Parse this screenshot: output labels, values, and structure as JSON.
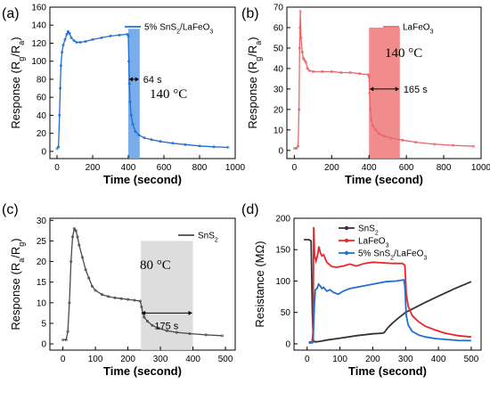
{
  "chart_data": [
    {
      "panel": "(a)",
      "type": "line",
      "xlabel": "Time (second)",
      "ylabel": "Response (Rg/Ra)",
      "ylabel_parts": [
        "Response (R",
        "g",
        "/R",
        "a",
        ")"
      ],
      "xlim": [
        -40,
        1000
      ],
      "ylim": [
        -8,
        160
      ],
      "xticks": [
        0,
        200,
        400,
        600,
        800,
        1000
      ],
      "yticks": [
        0,
        20,
        40,
        60,
        80,
        100,
        120,
        140,
        160
      ],
      "temperature": "140 °C",
      "response_window": [
        400,
        464
      ],
      "response_label": "64 s",
      "window_color": "#6aa3e8",
      "series": [
        {
          "name": "5% SnS2/LaFeO3",
          "name_parts": [
            "5% SnS",
            "2",
            "/LaFeO",
            "3"
          ],
          "color": "#1f6fd1",
          "points": [
            [
              0,
              3
            ],
            [
              8,
              5
            ],
            [
              14,
              40
            ],
            [
              18,
              70
            ],
            [
              22,
              95
            ],
            [
              28,
              110
            ],
            [
              35,
              118
            ],
            [
              45,
              124
            ],
            [
              55,
              130
            ],
            [
              62,
              133
            ],
            [
              70,
              131
            ],
            [
              80,
              126
            ],
            [
              95,
              123
            ],
            [
              110,
              121
            ],
            [
              130,
              121
            ],
            [
              160,
              122
            ],
            [
              200,
              124
            ],
            [
              250,
              126
            ],
            [
              300,
              128
            ],
            [
              350,
              129
            ],
            [
              395,
              130
            ],
            [
              400,
              128
            ],
            [
              403,
              100
            ],
            [
              406,
              75
            ],
            [
              410,
              55
            ],
            [
              416,
              40
            ],
            [
              425,
              30
            ],
            [
              440,
              22
            ],
            [
              460,
              18
            ],
            [
              490,
              15
            ],
            [
              530,
              13
            ],
            [
              580,
              11
            ],
            [
              650,
              9
            ],
            [
              720,
              7.5
            ],
            [
              800,
              6
            ],
            [
              880,
              5
            ],
            [
              960,
              4.5
            ]
          ]
        }
      ]
    },
    {
      "panel": "(b)",
      "type": "line",
      "xlabel": "Time (second)",
      "ylabel": "Response (Rg/Ra)",
      "ylabel_parts": [
        "Response (R",
        "g",
        "/R",
        "a",
        ")"
      ],
      "xlim": [
        -40,
        1000
      ],
      "ylim": [
        -4,
        70
      ],
      "xticks": [
        0,
        200,
        400,
        600,
        800,
        1000
      ],
      "yticks": [
        0,
        10,
        20,
        30,
        40,
        50,
        60,
        70
      ],
      "temperature": "140 °C",
      "response_window": [
        400,
        565
      ],
      "response_label": "165 s",
      "window_color": "#f08080",
      "series": [
        {
          "name": "LaFeO3",
          "name_parts": [
            "LaFeO",
            "3"
          ],
          "color": "#e8676b",
          "points": [
            [
              0,
              1
            ],
            [
              10,
              1
            ],
            [
              20,
              2
            ],
            [
              25,
              20
            ],
            [
              28,
              50
            ],
            [
              30,
              60
            ],
            [
              32,
              68
            ],
            [
              36,
              55
            ],
            [
              42,
              48
            ],
            [
              48,
              45
            ],
            [
              55,
              44
            ],
            [
              62,
              43
            ],
            [
              70,
              40
            ],
            [
              80,
              39
            ],
            [
              100,
              38.5
            ],
            [
              150,
              38.5
            ],
            [
              200,
              38.5
            ],
            [
              250,
              38
            ],
            [
              300,
              38
            ],
            [
              350,
              37.5
            ],
            [
              395,
              37
            ],
            [
              400,
              36
            ],
            [
              403,
              28
            ],
            [
              407,
              20
            ],
            [
              412,
              15
            ],
            [
              420,
              12
            ],
            [
              435,
              10
            ],
            [
              455,
              8
            ],
            [
              480,
              7
            ],
            [
              520,
              6
            ],
            [
              580,
              5
            ],
            [
              650,
              4
            ],
            [
              750,
              3
            ],
            [
              850,
              2.5
            ],
            [
              960,
              2
            ]
          ]
        }
      ]
    },
    {
      "panel": "(c)",
      "type": "line",
      "xlabel": "Time (second)",
      "ylabel": "Response (Ra/Rg)",
      "ylabel_parts": [
        "Response (R",
        "a",
        "/R",
        "g",
        ")"
      ],
      "xlim": [
        -40,
        530
      ],
      "ylim": [
        -1.5,
        30.5
      ],
      "xticks": [
        0,
        100,
        200,
        300,
        400,
        500
      ],
      "yticks": [
        0,
        5,
        10,
        15,
        20,
        25,
        30
      ],
      "temperature": "80 °C",
      "response_window": [
        240,
        400
      ],
      "response_label": "175 s",
      "window_color": "#d7d7d7",
      "series": [
        {
          "name": "SnS2",
          "name_parts": [
            "SnS",
            "2"
          ],
          "color": "#4a4a4a",
          "points": [
            [
              0,
              1
            ],
            [
              10,
              1
            ],
            [
              15,
              3
            ],
            [
              20,
              10
            ],
            [
              25,
              20
            ],
            [
              30,
              26
            ],
            [
              35,
              28
            ],
            [
              40,
              27.5
            ],
            [
              45,
              26
            ],
            [
              50,
              24
            ],
            [
              60,
              21
            ],
            [
              70,
              18
            ],
            [
              80,
              16
            ],
            [
              90,
              14
            ],
            [
              100,
              13
            ],
            [
              120,
              12
            ],
            [
              140,
              11.5
            ],
            [
              160,
              11.2
            ],
            [
              180,
              11
            ],
            [
              200,
              10.8
            ],
            [
              220,
              10.6
            ],
            [
              238,
              10.4
            ],
            [
              242,
              9
            ],
            [
              246,
              7.5
            ],
            [
              250,
              6.5
            ],
            [
              260,
              5.5
            ],
            [
              275,
              4.5
            ],
            [
              295,
              3.8
            ],
            [
              320,
              3.2
            ],
            [
              350,
              2.8
            ],
            [
              390,
              2.5
            ],
            [
              440,
              2.2
            ],
            [
              490,
              2
            ]
          ]
        }
      ]
    },
    {
      "panel": "(d)",
      "type": "line",
      "xlabel": "Time (second)",
      "ylabel": "Resistance (MΩ)",
      "xlim": [
        -40,
        530
      ],
      "ylim": [
        -10,
        200
      ],
      "xticks": [
        0,
        100,
        200,
        300,
        400,
        500
      ],
      "yticks": [
        0,
        50,
        100,
        150,
        200
      ],
      "legend": "top-right",
      "series": [
        {
          "name": "SnS2",
          "name_parts": [
            "SnS",
            "2"
          ],
          "color": "#333333",
          "points": [
            [
              -10,
              166
            ],
            [
              5,
              166
            ],
            [
              12,
              164
            ],
            [
              16,
              50
            ],
            [
              19,
              5
            ],
            [
              25,
              3
            ],
            [
              40,
              4
            ],
            [
              60,
              6
            ],
            [
              100,
              9
            ],
            [
              150,
              13
            ],
            [
              200,
              16
            ],
            [
              230,
              17
            ],
            [
              235,
              18
            ],
            [
              245,
              25
            ],
            [
              260,
              33
            ],
            [
              280,
              42
            ],
            [
              300,
              50
            ],
            [
              330,
              58
            ],
            [
              360,
              66
            ],
            [
              400,
              76
            ],
            [
              450,
              88
            ],
            [
              500,
              99
            ]
          ]
        },
        {
          "name": "LaFeO3",
          "name_parts": [
            "LaFeO",
            "3"
          ],
          "color": "#e8262b",
          "points": [
            [
              5,
              3
            ],
            [
              15,
              3
            ],
            [
              18,
              20
            ],
            [
              20,
              186
            ],
            [
              23,
              140
            ],
            [
              27,
              132
            ],
            [
              32,
              142
            ],
            [
              36,
              155
            ],
            [
              40,
              145
            ],
            [
              45,
              140
            ],
            [
              50,
              142
            ],
            [
              60,
              130
            ],
            [
              75,
              123
            ],
            [
              90,
              122
            ],
            [
              110,
              124
            ],
            [
              130,
              127
            ],
            [
              150,
              124
            ],
            [
              175,
              128
            ],
            [
              200,
              130
            ],
            [
              230,
              129
            ],
            [
              260,
              128
            ],
            [
              290,
              128
            ],
            [
              298,
              125
            ],
            [
              302,
              80
            ],
            [
              308,
              60
            ],
            [
              320,
              45
            ],
            [
              340,
              35
            ],
            [
              360,
              28
            ],
            [
              390,
              22
            ],
            [
              420,
              17
            ],
            [
              460,
              13
            ],
            [
              500,
              11
            ]
          ]
        },
        {
          "name": "5% SnS2/LaFeO3",
          "name_parts": [
            "5% SnS",
            "2",
            "/LaFeO",
            "3"
          ],
          "color": "#1f6fd1",
          "points": [
            [
              5,
              1
            ],
            [
              18,
              2
            ],
            [
              22,
              60
            ],
            [
              25,
              86
            ],
            [
              30,
              88
            ],
            [
              35,
              95
            ],
            [
              40,
              92
            ],
            [
              45,
              88
            ],
            [
              50,
              90
            ],
            [
              60,
              84
            ],
            [
              70,
              86
            ],
            [
              80,
              82
            ],
            [
              95,
              79
            ],
            [
              110,
              84
            ],
            [
              130,
              88
            ],
            [
              150,
              90
            ],
            [
              180,
              93
            ],
            [
              210,
              96
            ],
            [
              240,
              99
            ],
            [
              270,
              100
            ],
            [
              295,
              102
            ],
            [
              298,
              90
            ],
            [
              302,
              45
            ],
            [
              308,
              30
            ],
            [
              320,
              20
            ],
            [
              340,
              14
            ],
            [
              360,
              11
            ],
            [
              390,
              8.5
            ],
            [
              420,
              7
            ],
            [
              460,
              5.5
            ],
            [
              500,
              5
            ]
          ]
        }
      ]
    }
  ]
}
